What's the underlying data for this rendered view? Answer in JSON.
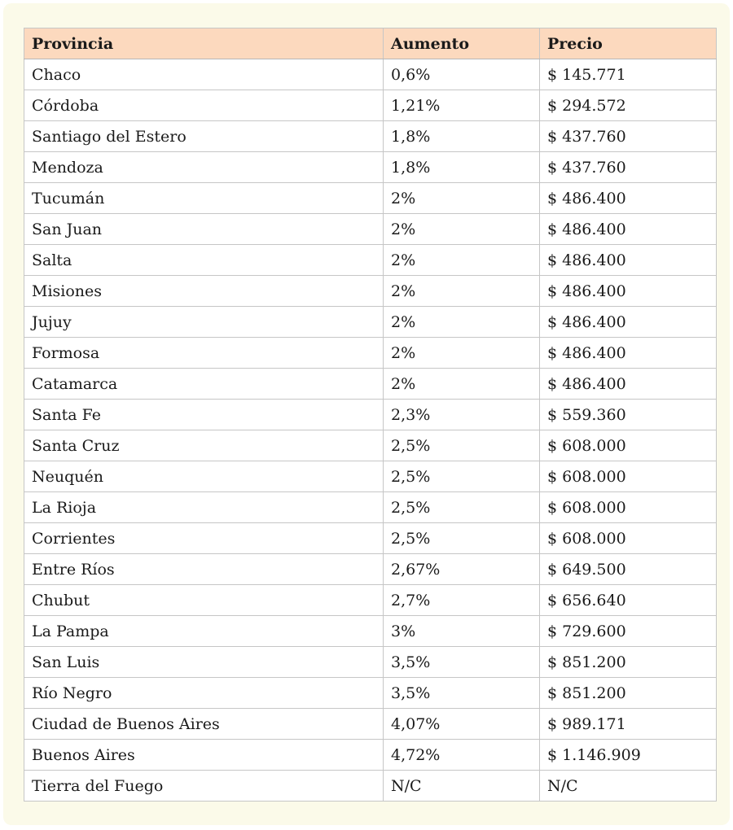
{
  "colors": {
    "page_background": "#ffffff",
    "card_background": "#fbfae9",
    "header_background": "#fcd9be",
    "cell_background": "#ffffff",
    "border": "#c6c6c6",
    "text": "#1a1a1a"
  },
  "chart_data": {
    "type": "table",
    "title": "",
    "columns": [
      "Provincia",
      "Aumento",
      "Precio"
    ],
    "rows": [
      [
        "Chaco",
        "0,6%",
        "$ 145.771"
      ],
      [
        "Córdoba",
        "1,21%",
        "$ 294.572"
      ],
      [
        "Santiago del Estero",
        "1,8%",
        "$ 437.760"
      ],
      [
        "Mendoza",
        "1,8%",
        "$ 437.760"
      ],
      [
        "Tucumán",
        "2%",
        "$ 486.400"
      ],
      [
        "San Juan",
        "2%",
        "$ 486.400"
      ],
      [
        "Salta",
        "2%",
        "$ 486.400"
      ],
      [
        "Misiones",
        "2%",
        "$ 486.400"
      ],
      [
        "Jujuy",
        "2%",
        "$ 486.400"
      ],
      [
        "Formosa",
        "2%",
        "$ 486.400"
      ],
      [
        "Catamarca",
        "2%",
        "$ 486.400"
      ],
      [
        "Santa Fe",
        "2,3%",
        "$ 559.360"
      ],
      [
        "Santa Cruz",
        "2,5%",
        "$ 608.000"
      ],
      [
        "Neuquén",
        "2,5%",
        "$ 608.000"
      ],
      [
        "La Rioja",
        "2,5%",
        "$ 608.000"
      ],
      [
        "Corrientes",
        "2,5%",
        "$ 608.000"
      ],
      [
        "Entre Ríos",
        "2,67%",
        "$ 649.500"
      ],
      [
        "Chubut",
        "2,7%",
        "$ 656.640"
      ],
      [
        "La Pampa",
        "3%",
        "$ 729.600"
      ],
      [
        "San Luis",
        "3,5%",
        "$ 851.200"
      ],
      [
        "Río Negro",
        "3,5%",
        "$ 851.200"
      ],
      [
        "Ciudad de Buenos Aires",
        "4,07%",
        "$ 989.171"
      ],
      [
        "Buenos Aires",
        "4,72%",
        "$ 1.146.909"
      ],
      [
        "Tierra del Fuego",
        "N/C",
        "N/C"
      ]
    ]
  }
}
